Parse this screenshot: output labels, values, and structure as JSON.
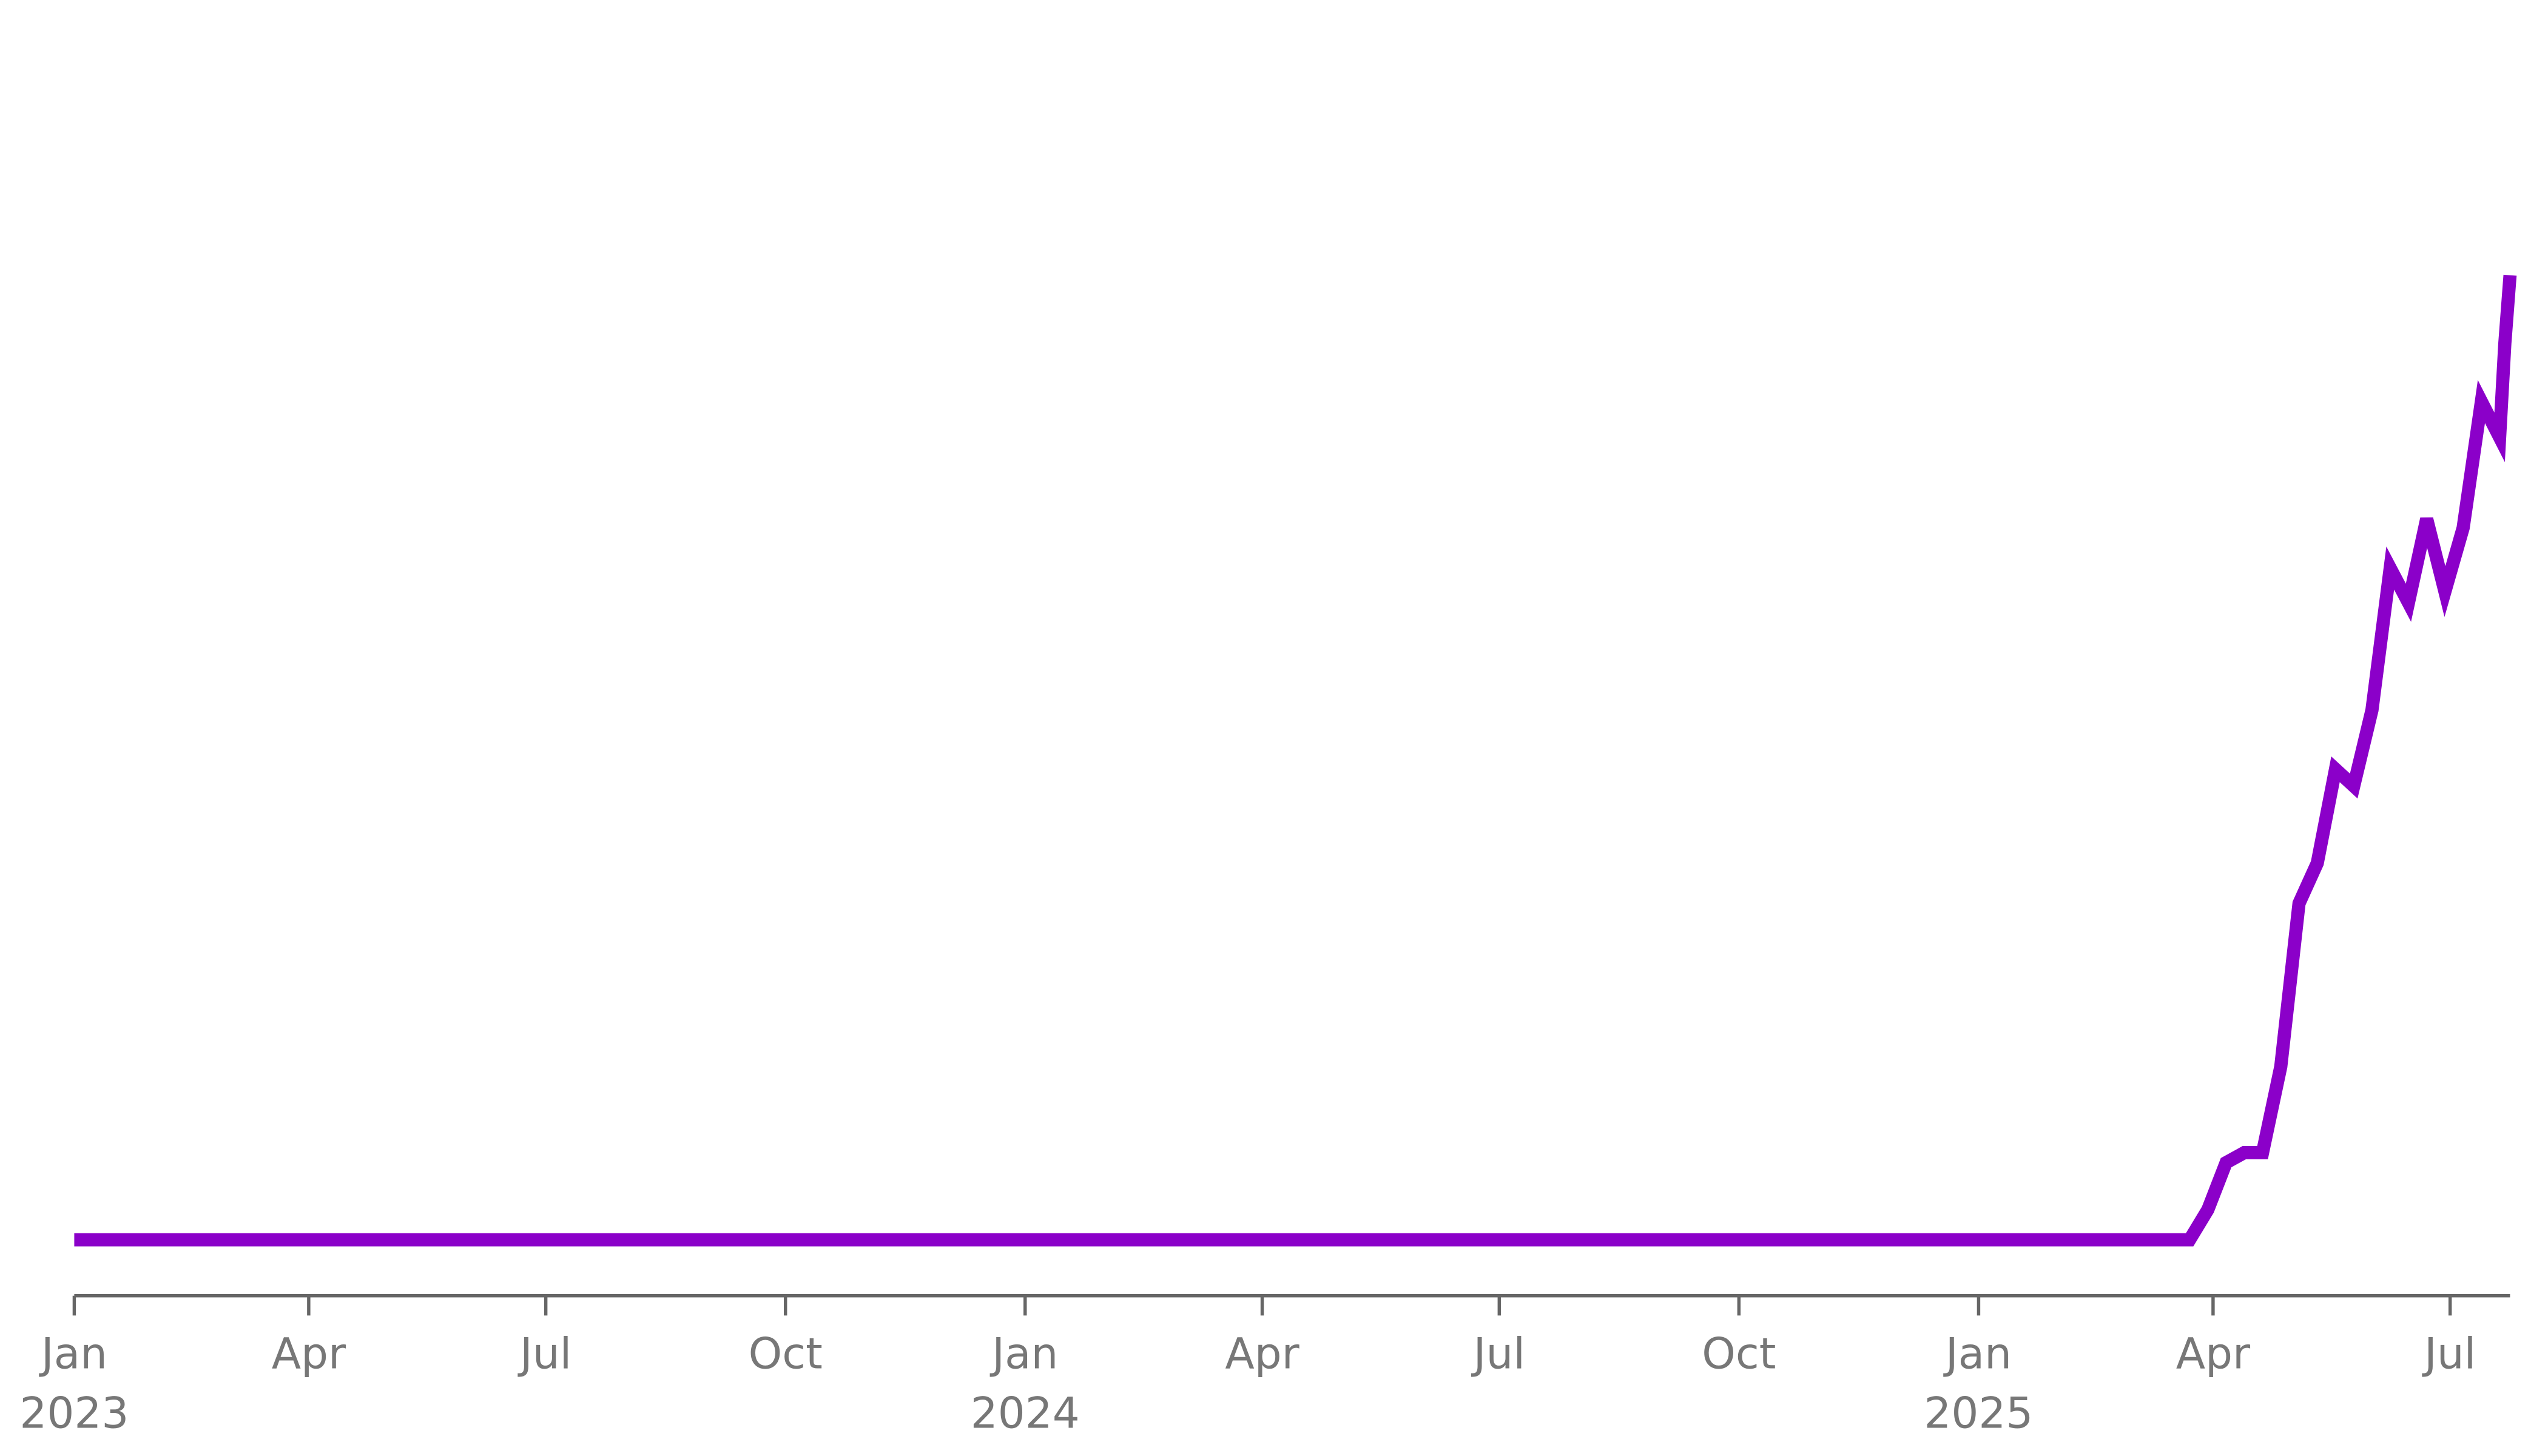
{
  "chart_data": {
    "type": "line",
    "x": [
      "2023-01-01",
      "2025-03-23",
      "2025-03-30",
      "2025-04-06",
      "2025-04-13",
      "2025-04-20",
      "2025-04-27",
      "2025-05-04",
      "2025-05-11",
      "2025-05-18",
      "2025-05-25",
      "2025-06-01",
      "2025-06-08",
      "2025-06-15",
      "2025-06-22",
      "2025-06-29",
      "2025-07-06",
      "2025-07-13",
      "2025-07-20",
      "2025-07-22",
      "2025-07-24"
    ],
    "series": [
      {
        "color": "#8b00c9",
        "values": [
          0,
          0,
          2.7,
          6.9,
          7.8,
          7.8,
          15.5,
          30.1,
          33.7,
          42.1,
          40.6,
          47.4,
          60.1,
          57.0,
          64.5,
          58.0,
          63.7,
          75.0,
          71.8,
          80.2,
          86.3
        ]
      }
    ],
    "xlim": [
      "2023-01-01",
      "2025-07-24"
    ],
    "ylim": [
      -5,
      105
    ],
    "xticks": [
      {
        "value": "2023-01-01",
        "label": "Jan",
        "sublabel": "2023"
      },
      {
        "value": "2023-04-01",
        "label": "Apr"
      },
      {
        "value": "2023-07-01",
        "label": "Jul"
      },
      {
        "value": "2023-10-01",
        "label": "Oct"
      },
      {
        "value": "2024-01-01",
        "label": "Jan",
        "sublabel": "2024"
      },
      {
        "value": "2024-04-01",
        "label": "Apr"
      },
      {
        "value": "2024-07-01",
        "label": "Jul"
      },
      {
        "value": "2024-10-01",
        "label": "Oct"
      },
      {
        "value": "2025-01-01",
        "label": "Jan",
        "sublabel": "2025"
      },
      {
        "value": "2025-04-01",
        "label": "Apr"
      },
      {
        "value": "2025-07-01",
        "label": "Jul"
      }
    ]
  }
}
